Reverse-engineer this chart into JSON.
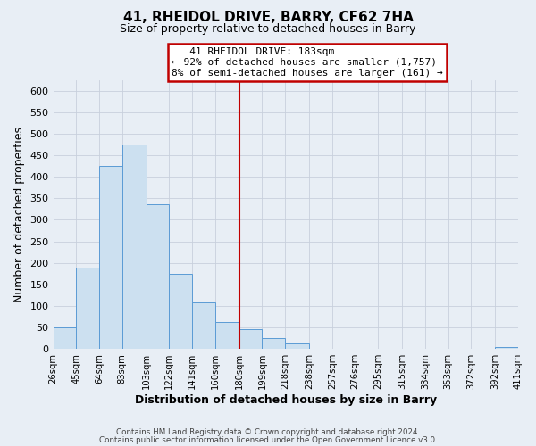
{
  "title": "41, RHEIDOL DRIVE, BARRY, CF62 7HA",
  "subtitle": "Size of property relative to detached houses in Barry",
  "xlabel": "Distribution of detached houses by size in Barry",
  "ylabel": "Number of detached properties",
  "bin_edges": [
    26,
    45,
    64,
    83,
    103,
    122,
    141,
    160,
    180,
    199,
    218,
    238,
    257,
    276,
    295,
    315,
    334,
    353,
    372,
    392,
    411
  ],
  "bin_heights": [
    50,
    190,
    425,
    475,
    337,
    175,
    108,
    62,
    45,
    25,
    12,
    0,
    0,
    0,
    0,
    0,
    0,
    0,
    0,
    5
  ],
  "bar_facecolor": "#cce0f0",
  "bar_edgecolor": "#5b9bd5",
  "vline_x": 180,
  "vline_color": "#c00000",
  "ylim_max": 625,
  "yticks": [
    0,
    50,
    100,
    150,
    200,
    250,
    300,
    350,
    400,
    450,
    500,
    550,
    600
  ],
  "annotation_title": "41 RHEIDOL DRIVE: 183sqm",
  "annotation_line1": "← 92% of detached houses are smaller (1,757)",
  "annotation_line2": "8% of semi-detached houses are larger (161) →",
  "annotation_box_facecolor": "#ffffff",
  "annotation_box_edgecolor": "#c00000",
  "grid_color": "#c8d0dc",
  "background_color": "#e8eef5",
  "footer1": "Contains HM Land Registry data © Crown copyright and database right 2024.",
  "footer2": "Contains public sector information licensed under the Open Government Licence v3.0."
}
